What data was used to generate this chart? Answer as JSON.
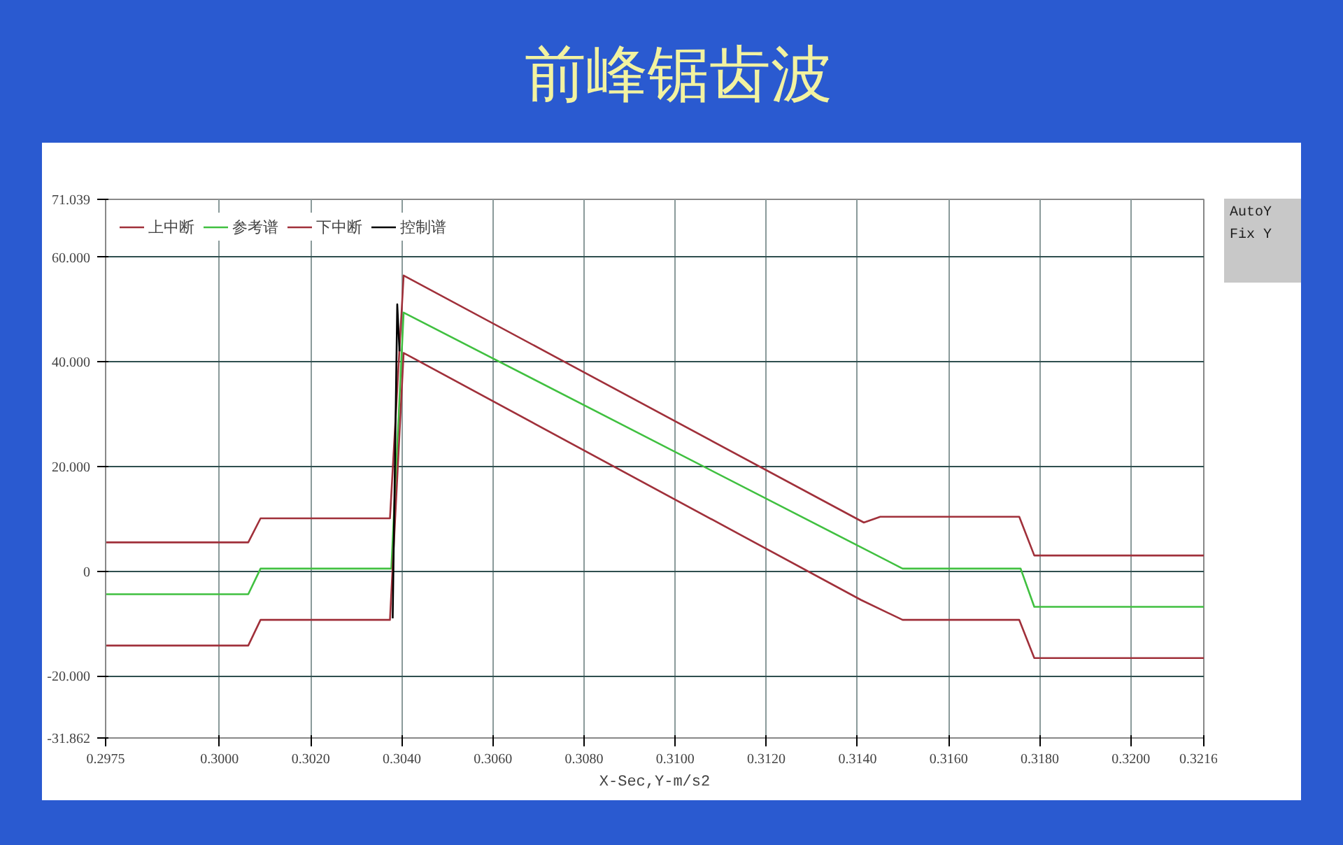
{
  "chart_data": {
    "type": "line",
    "title": "前峰锯齿波",
    "xlabel": "X-Sec,Y-m/s2",
    "xlim": [
      0.2975,
      0.3216
    ],
    "xticks": [
      0.2975,
      {
        "value": 0.3,
        "label": "0.3000"
      },
      {
        "value": 0.302,
        "label": "0.3020"
      },
      {
        "value": 0.304,
        "label": "0.3040"
      },
      {
        "value": 0.306,
        "label": "0.3060"
      },
      {
        "value": 0.308,
        "label": "0.3080"
      },
      {
        "value": 0.31,
        "label": "0.3100"
      },
      {
        "value": 0.312,
        "label": "0.3120"
      },
      {
        "value": 0.314,
        "label": "0.3140"
      },
      {
        "value": 0.316,
        "label": "0.3160"
      },
      {
        "value": 0.318,
        "label": "0.3180"
      },
      {
        "value": 0.32,
        "label": "0.3200"
      },
      0.3216
    ],
    "ylim": [
      -31.862,
      71.039
    ],
    "yticks": [
      71.039,
      {
        "value": 60,
        "label": "60.000"
      },
      {
        "value": 40,
        "label": "40.000"
      },
      {
        "value": 20,
        "label": "20.000"
      },
      0,
      {
        "value": -20,
        "label": "-20.000"
      },
      -31.862
    ],
    "grid": true,
    "legend": "top left",
    "marker": "none",
    "line_style": "solid",
    "annotations": [
      "AutoY",
      "Fix Y"
    ],
    "series": [
      {
        "name": "上中断",
        "color": "#a0303a",
        "x": [
          0.2975,
          0.30063,
          0.3009,
          0.30374,
          0.30404,
          0.31414,
          0.3145,
          0.31755,
          0.31788,
          0.3216
        ],
        "values": [
          5.5,
          5.5,
          10.1,
          10.1,
          56.5,
          9.3,
          10.4,
          10.4,
          3.0,
          3.0
        ]
      },
      {
        "name": "参考谱",
        "color": "#40c040",
        "x": [
          0.2975,
          0.30063,
          0.3009,
          0.30377,
          0.30404,
          0.31499,
          0.31758,
          0.31788,
          0.3216
        ],
        "values": [
          -4.4,
          -4.4,
          0.5,
          0.5,
          49.4,
          0.5,
          0.5,
          -6.8,
          -6.8
        ]
      },
      {
        "name": "下中断",
        "color": "#a0303a",
        "x": [
          0.2975,
          0.30063,
          0.3009,
          0.30374,
          0.30404,
          0.31408,
          0.31499,
          0.31755,
          0.31788,
          0.3216
        ],
        "values": [
          -14.2,
          -14.2,
          -9.3,
          -9.3,
          41.7,
          -5.5,
          -9.3,
          -9.3,
          -16.6,
          -16.6
        ]
      },
      {
        "name": "控制谱",
        "color": "#000000",
        "x": [
          0.3038,
          0.3039,
          0.30395
        ],
        "values": [
          -9,
          51,
          42
        ]
      }
    ]
  }
}
